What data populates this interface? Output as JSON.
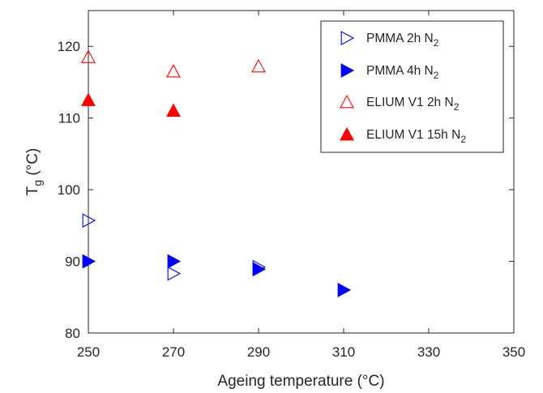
{
  "chart_data": {
    "type": "scatter",
    "xlabel": "Ageing temperature (°C)",
    "ylabel": {
      "main": "T",
      "sub": "g",
      "rest": " (°C)"
    },
    "xlim": [
      250,
      350
    ],
    "ylim": [
      80,
      125
    ],
    "x_ticks": [
      250,
      270,
      290,
      310,
      330,
      350
    ],
    "y_ticks": [
      80,
      90,
      100,
      110,
      120
    ],
    "grid": false,
    "legend_position": "top-right",
    "series": [
      {
        "name": "PMMA 2h N₂",
        "label_main": "PMMA 2h N",
        "label_sub": "2",
        "marker": "triangle-right-open",
        "color": "#0000ff",
        "points": [
          [
            250,
            95.7
          ],
          [
            270,
            88.3
          ],
          [
            290,
            89.2
          ]
        ]
      },
      {
        "name": "PMMA 4h N₂",
        "label_main": "PMMA 4h N",
        "label_sub": "2",
        "marker": "triangle-right-filled",
        "color": "#0000ff",
        "points": [
          [
            250,
            90.0
          ],
          [
            270,
            90.0
          ],
          [
            290,
            88.9
          ],
          [
            310,
            86.0
          ]
        ]
      },
      {
        "name": "ELIUM V1 2h N₂",
        "label_main": "ELIUM V1 2h N",
        "label_sub": "2",
        "marker": "triangle-up-open",
        "color": "#ff0000",
        "points": [
          [
            250,
            118.5
          ],
          [
            270,
            116.5
          ],
          [
            290,
            117.2
          ]
        ]
      },
      {
        "name": "ELIUM V1 15h N₂",
        "label_main": "ELIUM V1 15h N",
        "label_sub": "2",
        "marker": "triangle-up-filled",
        "color": "#ff0000",
        "points": [
          [
            250,
            112.5
          ],
          [
            270,
            111.0
          ]
        ]
      }
    ]
  }
}
